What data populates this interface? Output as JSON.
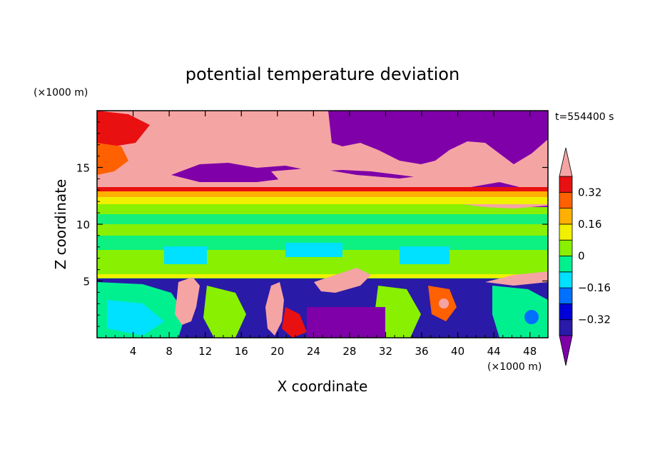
{
  "chart_data": {
    "type": "heatmap",
    "title": "potential temperature deviation",
    "xlabel": "X coordinate",
    "ylabel": "Z coordinate",
    "x_unit": "(×1000 m)",
    "y_unit": "(×1000 m)",
    "time_label": "t=554400 s",
    "xlim": [
      0,
      50
    ],
    "ylim": [
      0,
      20
    ],
    "x_ticks": [
      4,
      8,
      12,
      16,
      20,
      24,
      28,
      32,
      36,
      40,
      44,
      48
    ],
    "y_ticks": [
      5,
      10,
      15
    ],
    "colorbar": {
      "levels": [
        -0.4,
        -0.32,
        -0.24,
        -0.16,
        -0.08,
        0,
        0.08,
        0.16,
        0.24,
        0.32,
        0.4
      ],
      "labels": [
        "0.32",
        "0.16",
        "0",
        "−0.16",
        "−0.32"
      ],
      "label_values": [
        0.32,
        0.16,
        0,
        -0.16,
        -0.32
      ],
      "colors": [
        "#7f00a8",
        "#2a1aa8",
        "#0000d8",
        "#0070ff",
        "#00e0ff",
        "#00f090",
        "#88f000",
        "#f0f000",
        "#ffb000",
        "#ff6000",
        "#e81010",
        "#f5a4a4"
      ],
      "extend": "both"
    },
    "bands": [
      {
        "z_range": [
          0,
          5
        ],
        "description_value": -0.3
      },
      {
        "z_range": [
          5,
          12
        ],
        "description_value": 0.02
      },
      {
        "z_range": [
          12,
          13.5
        ],
        "description_value": 0.3
      },
      {
        "z_range": [
          13.5,
          20
        ],
        "description_value": 0.4
      }
    ]
  }
}
